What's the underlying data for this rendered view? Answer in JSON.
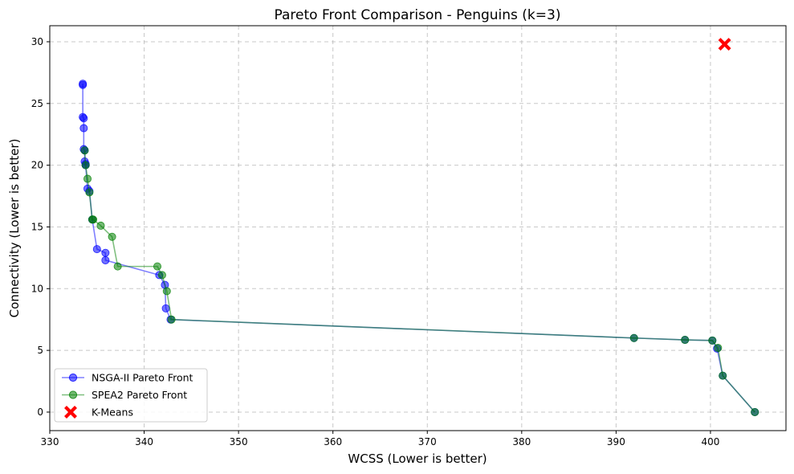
{
  "chart_data": {
    "type": "scatter",
    "title": "Pareto Front Comparison - Penguins (k=3)",
    "xlabel": "WCSS (Lower is better)",
    "ylabel": "Connectivity (Lower is better)",
    "xlim": [
      330,
      408
    ],
    "ylim": [
      -1.5,
      31.3
    ],
    "xticks": [
      330,
      340,
      350,
      360,
      370,
      380,
      390,
      400
    ],
    "yticks": [
      0,
      5,
      10,
      15,
      20,
      25,
      30
    ],
    "grid": true,
    "legend_position": "lower-left",
    "series": [
      {
        "name": "NSGA-II Pareto Front",
        "color": "#0000ff",
        "marker": "circle",
        "line": true,
        "points": [
          [
            333.5,
            26.6
          ],
          [
            333.5,
            26.5
          ],
          [
            333.5,
            23.9
          ],
          [
            333.6,
            23.8
          ],
          [
            333.6,
            23.0
          ],
          [
            333.6,
            21.3
          ],
          [
            333.7,
            21.2
          ],
          [
            333.7,
            20.3
          ],
          [
            333.8,
            20.1
          ],
          [
            333.8,
            20.0
          ],
          [
            334.0,
            18.1
          ],
          [
            334.2,
            17.9
          ],
          [
            334.5,
            15.6
          ],
          [
            335.0,
            13.2
          ],
          [
            335.9,
            12.9
          ],
          [
            335.9,
            12.3
          ],
          [
            341.6,
            11.1
          ],
          [
            342.2,
            10.3
          ],
          [
            342.3,
            8.4
          ],
          [
            342.8,
            7.5
          ],
          [
            391.9,
            6.0
          ],
          [
            397.3,
            5.85
          ],
          [
            400.2,
            5.8
          ],
          [
            400.7,
            5.15
          ],
          [
            401.3,
            2.95
          ],
          [
            404.7,
            0.0
          ]
        ]
      },
      {
        "name": "SPEA2 Pareto Front",
        "color": "#008000",
        "marker": "circle",
        "line": true,
        "points": [
          [
            333.7,
            21.2
          ],
          [
            333.8,
            20.0
          ],
          [
            334.0,
            18.9
          ],
          [
            334.2,
            17.8
          ],
          [
            334.5,
            15.6
          ],
          [
            334.6,
            15.6
          ],
          [
            335.4,
            15.1
          ],
          [
            336.6,
            14.2
          ],
          [
            337.2,
            11.8
          ],
          [
            341.4,
            11.8
          ],
          [
            341.9,
            11.1
          ],
          [
            342.4,
            9.8
          ],
          [
            342.9,
            7.5
          ],
          [
            391.9,
            6.0
          ],
          [
            397.3,
            5.85
          ],
          [
            400.2,
            5.8
          ],
          [
            400.8,
            5.2
          ],
          [
            401.3,
            2.95
          ],
          [
            404.7,
            0.0
          ]
        ]
      },
      {
        "name": "K-Means",
        "color": "#ff0000",
        "marker": "x",
        "line": false,
        "points": [
          [
            401.5,
            29.8
          ]
        ]
      }
    ]
  }
}
